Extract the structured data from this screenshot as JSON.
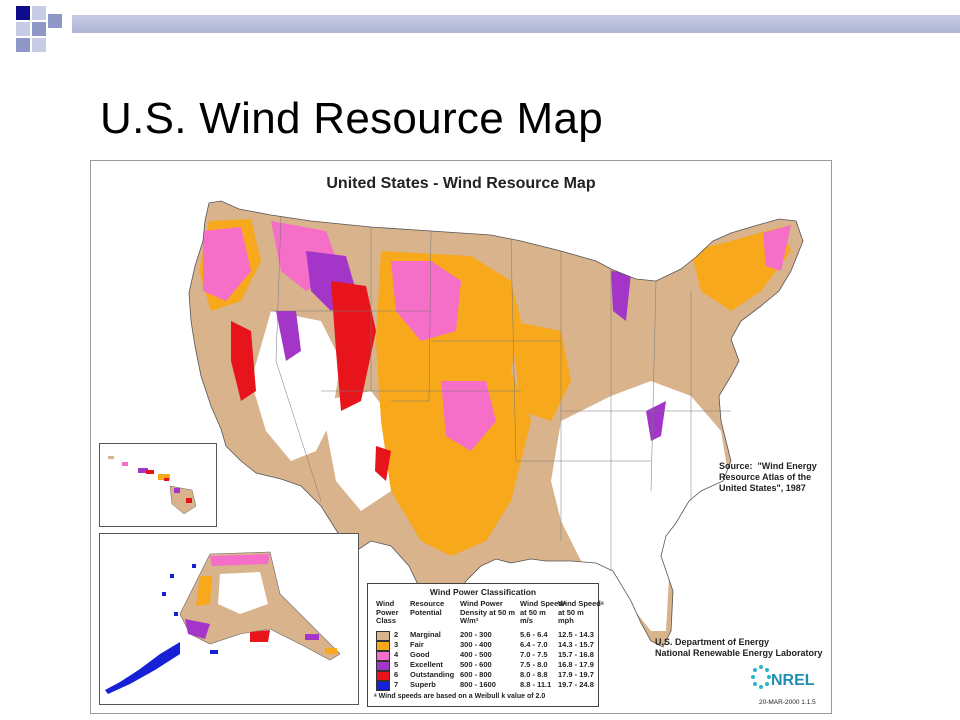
{
  "slide": {
    "title": "U.S. Wind Resource Map"
  },
  "map": {
    "title": "United States - Wind Resource Map",
    "source_note": "Source:  \"Wind Energy\nResource Atlas of the\nUnited States\", 1987",
    "agency": "U.S. Department of Energy\nNational Renewable Energy Laboratory",
    "logo_text": "NREL",
    "date_code": "20-MAR-2000 1.1.5",
    "colors": {
      "marginal": "#d9b38c",
      "fair": "#f7a81b",
      "good": "#f56fc9",
      "excellent": "#a335c8",
      "outstanding": "#e8141c",
      "superb": "#1621d6",
      "background": "#ffffff"
    }
  },
  "legend": {
    "title": "Wind Power Classification",
    "headers": {
      "class": "Wind\nPower\nClass",
      "potential": "Resource\nPotential",
      "density": "Wind Power\nDensity at 50 m\nW/m²",
      "speed_ms": "Wind Speedᵃ\nat 50 m\nm/s",
      "speed_mph": "Wind Speedᵃ\nat 50 m\nmph"
    },
    "rows": [
      {
        "class": "2",
        "potential": "Marginal",
        "density": "200 - 300",
        "speed_ms": "5.6 - 6.4",
        "speed_mph": "12.5 - 14.3",
        "color": "#d9b38c"
      },
      {
        "class": "3",
        "potential": "Fair",
        "density": "300 - 400",
        "speed_ms": "6.4 - 7.0",
        "speed_mph": "14.3 - 15.7",
        "color": "#f7a81b"
      },
      {
        "class": "4",
        "potential": "Good",
        "density": "400 - 500",
        "speed_ms": "7.0 - 7.5",
        "speed_mph": "15.7 - 16.8",
        "color": "#f56fc9"
      },
      {
        "class": "5",
        "potential": "Excellent",
        "density": "500 - 600",
        "speed_ms": "7.5 - 8.0",
        "speed_mph": "16.8 - 17.9",
        "color": "#a335c8"
      },
      {
        "class": "6",
        "potential": "Outstanding",
        "density": "600 - 800",
        "speed_ms": "8.0 - 8.8",
        "speed_mph": "17.9 - 19.7",
        "color": "#e8141c"
      },
      {
        "class": "7",
        "potential": "Superb",
        "density": "800 - 1600",
        "speed_ms": "8.8 - 11.1",
        "speed_mph": "19.7 - 24.8",
        "color": "#1621d6"
      }
    ],
    "footnote": "ᵃ Wind speeds are based on a Weibull k value of 2.0"
  }
}
